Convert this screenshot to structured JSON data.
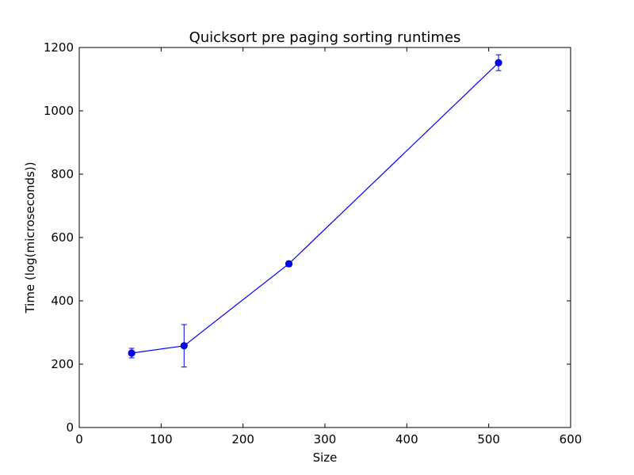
{
  "chart_data": {
    "type": "line",
    "title": "Quicksort pre paging sorting runtimes",
    "xlabel": "Size",
    "ylabel": "Time (log(microseconds))",
    "xlim": [
      0,
      600
    ],
    "ylim": [
      0,
      1200
    ],
    "xticks": [
      0,
      100,
      200,
      300,
      400,
      500,
      600
    ],
    "yticks": [
      0,
      200,
      400,
      600,
      800,
      1000,
      1200
    ],
    "grid": false,
    "series": [
      {
        "color": "#0000ff",
        "marker": "circle",
        "x": [
          64,
          128,
          256,
          512
        ],
        "y": [
          235,
          258,
          517,
          1152
        ],
        "yerr": [
          15,
          67,
          8,
          25
        ]
      }
    ]
  }
}
